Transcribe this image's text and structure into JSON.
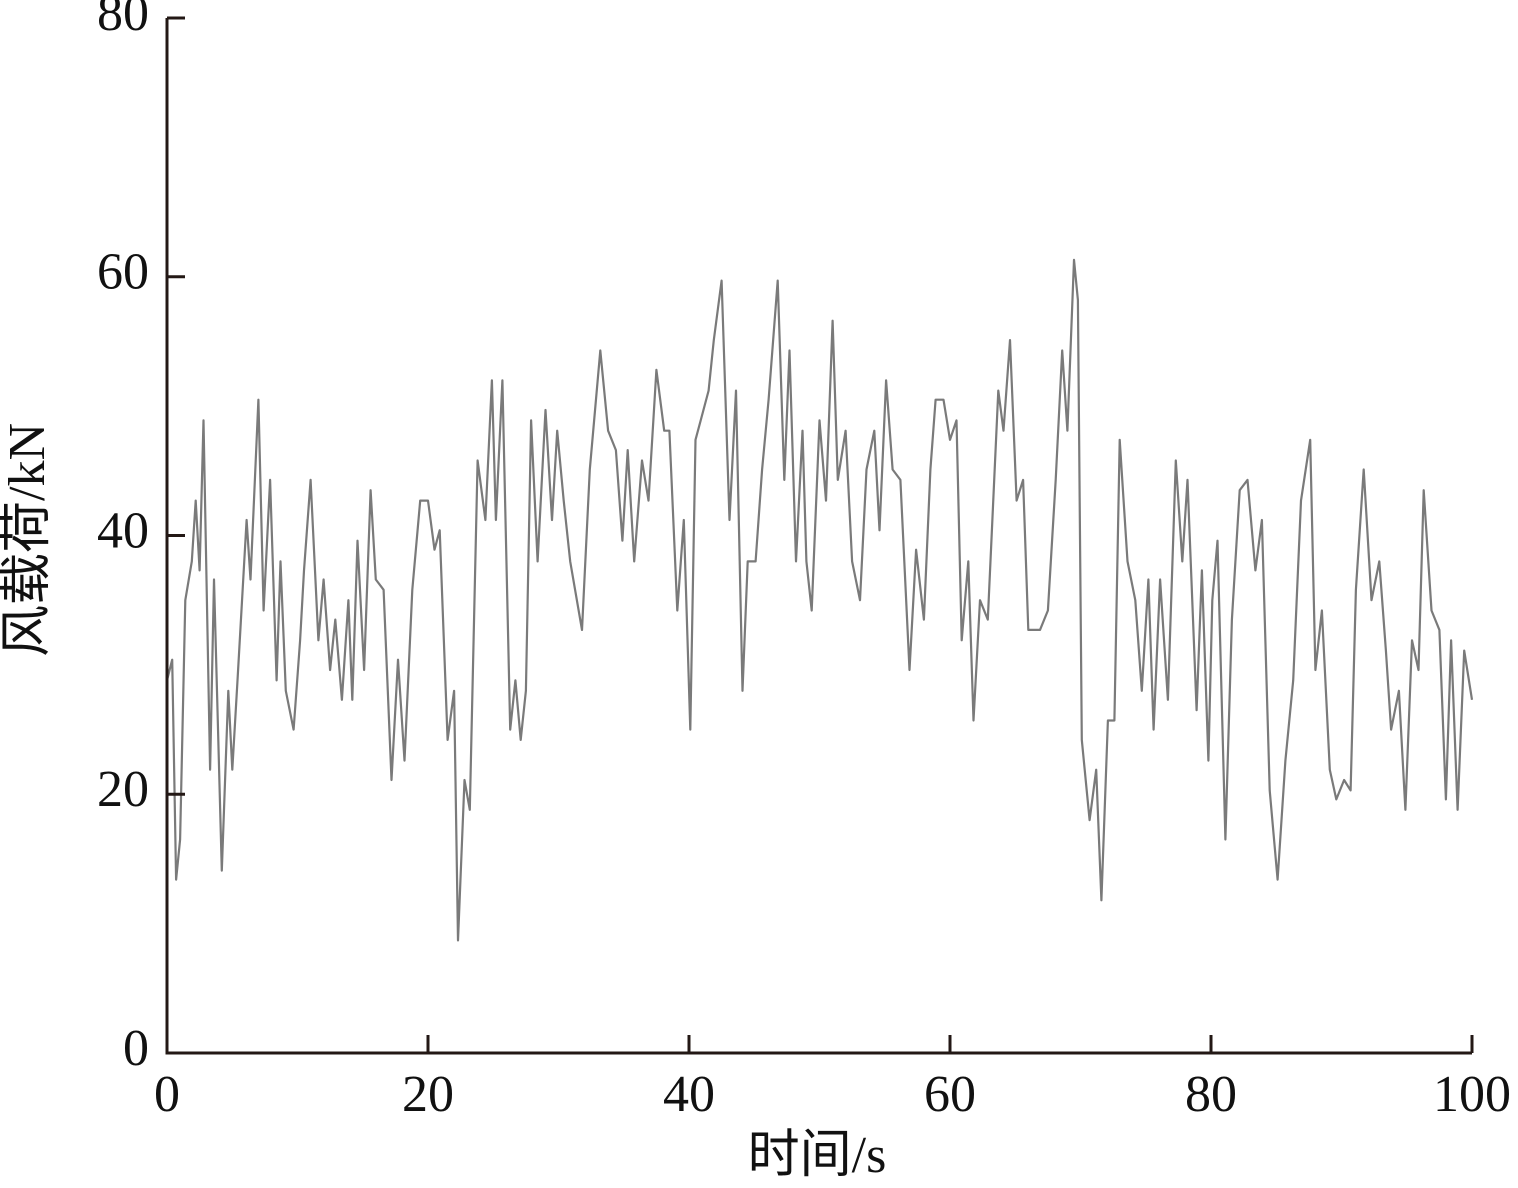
{
  "chart_data": {
    "type": "line",
    "x_label": "时间/s",
    "y_label": "风载荷/kN",
    "xlim": [
      0,
      100
    ],
    "ylim": [
      0,
      80
    ],
    "xticks": [
      0,
      20,
      40,
      60,
      80,
      100
    ],
    "yticks": [
      0,
      20,
      40,
      60,
      80
    ],
    "x": [
      0,
      0.4,
      0.7,
      1.0,
      1.4,
      1.9,
      2.2,
      2.5,
      2.8,
      3.3,
      3.6,
      4.2,
      4.7,
      5.0,
      5.4,
      6.1,
      6.4,
      7.0,
      7.4,
      7.9,
      8.4,
      8.7,
      9.1,
      9.7,
      10.2,
      10.5,
      11.0,
      11.6,
      12.0,
      12.5,
      12.9,
      13.4,
      13.9,
      14.2,
      14.6,
      15.1,
      15.6,
      16.0,
      16.6,
      17.2,
      17.7,
      18.2,
      18.8,
      19.4,
      20.0,
      20.5,
      20.9,
      21.5,
      22.0,
      22.3,
      22.8,
      23.2,
      23.8,
      24.4,
      24.9,
      25.2,
      25.7,
      26.3,
      26.7,
      27.1,
      27.5,
      27.9,
      28.4,
      29.0,
      29.5,
      29.9,
      30.4,
      30.9,
      31.8,
      32.4,
      33.2,
      33.8,
      34.4,
      34.9,
      35.3,
      35.8,
      36.4,
      36.9,
      37.5,
      38.1,
      38.5,
      39.1,
      39.6,
      40.1,
      40.5,
      40.9,
      41.5,
      41.9,
      42.5,
      43.1,
      43.6,
      44.1,
      44.5,
      45.1,
      45.6,
      46.1,
      46.8,
      47.3,
      47.7,
      48.2,
      48.7,
      49.0,
      49.4,
      50.0,
      50.5,
      51.0,
      51.4,
      52.0,
      52.5,
      53.1,
      53.6,
      54.2,
      54.6,
      55.1,
      55.6,
      56.2,
      56.9,
      57.4,
      58.0,
      58.5,
      58.9,
      59.5,
      60.0,
      60.5,
      60.9,
      61.4,
      61.8,
      62.3,
      62.9,
      63.7,
      64.1,
      64.6,
      65.1,
      65.6,
      66.0,
      66.9,
      67.5,
      68.1,
      68.6,
      69.0,
      69.5,
      69.8,
      70.1,
      70.7,
      71.2,
      71.6,
      72.1,
      72.6,
      73.0,
      73.6,
      74.2,
      74.7,
      75.2,
      75.6,
      76.1,
      76.7,
      77.3,
      77.8,
      78.2,
      78.9,
      79.3,
      79.8,
      80.1,
      80.5,
      81.1,
      81.6,
      82.2,
      82.8,
      83.4,
      83.9,
      84.5,
      85.1,
      85.7,
      86.3,
      86.9,
      87.6,
      88.0,
      88.5,
      89.1,
      89.6,
      90.2,
      90.7,
      91.1,
      91.7,
      92.3,
      92.9,
      93.4,
      93.8,
      94.4,
      94.9,
      95.4,
      95.9,
      96.3,
      96.9,
      97.5,
      98.0,
      98.4,
      98.9,
      99.4,
      100
    ],
    "series": [
      {
        "color": "#7a7a7a",
        "values": [
          28.8,
          30.4,
          13.4,
          16.5,
          35,
          38,
          42.7,
          37.3,
          48.9,
          21.9,
          36.6,
          14.1,
          28,
          21.9,
          28.8,
          41.2,
          36.6,
          50.5,
          34.2,
          44.3,
          28.8,
          38,
          28,
          25,
          31.9,
          37.3,
          44.3,
          31.9,
          36.6,
          29.6,
          33.5,
          27.3,
          35,
          27.3,
          39.6,
          29.6,
          43.5,
          36.6,
          35.8,
          21.1,
          30.4,
          22.6,
          35.8,
          42.7,
          42.7,
          38.9,
          40.4,
          24.2,
          28,
          8.7,
          21.1,
          18.8,
          45.8,
          41.2,
          52,
          41.2,
          52,
          25,
          28.8,
          24.2,
          28,
          48.9,
          38,
          49.7,
          41.2,
          48.1,
          42.7,
          38,
          32.7,
          45.1,
          54.3,
          48.1,
          46.6,
          39.6,
          46.6,
          38,
          45.8,
          42.7,
          52.8,
          48.1,
          48.1,
          34.2,
          41.2,
          25,
          47.4,
          48.9,
          51.2,
          55.1,
          59.7,
          41.2,
          51.2,
          28,
          38,
          38,
          45.1,
          50.5,
          59.7,
          44.3,
          54.3,
          38,
          48.1,
          38,
          34.2,
          48.9,
          42.7,
          56.6,
          44.3,
          48.1,
          38,
          35,
          45.1,
          48.1,
          40.4,
          52,
          45.1,
          44.3,
          29.6,
          38.9,
          33.5,
          45.1,
          50.5,
          50.5,
          47.4,
          48.9,
          31.9,
          38,
          25.7,
          35,
          33.5,
          51.2,
          48.1,
          55.1,
          42.7,
          44.3,
          32.7,
          32.7,
          34.2,
          44.3,
          54.3,
          48.1,
          61.3,
          58.2,
          24.2,
          18,
          21.9,
          11.8,
          25.7,
          25.7,
          47.4,
          38,
          35,
          28,
          36.6,
          25,
          36.6,
          27.3,
          45.8,
          38,
          44.3,
          26.5,
          37.3,
          22.6,
          35,
          39.6,
          16.5,
          33.5,
          43.5,
          44.3,
          37.3,
          41.2,
          20.3,
          13.4,
          22.6,
          28.8,
          42.7,
          47.4,
          29.6,
          34.2,
          21.9,
          19.6,
          21.1,
          20.3,
          35.8,
          45.1,
          35,
          38,
          31.1,
          25,
          28,
          18.8,
          31.9,
          29.6,
          43.5,
          34.2,
          32.7,
          19.6,
          31.9,
          18.8,
          31.1,
          27.3
        ]
      }
    ]
  }
}
